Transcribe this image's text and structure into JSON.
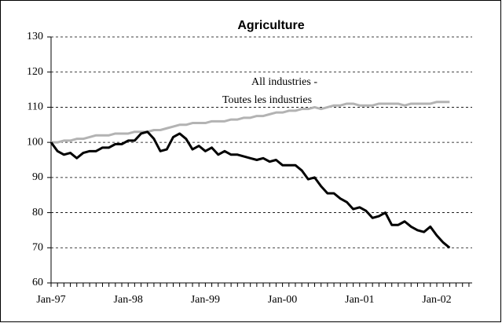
{
  "chart_data": {
    "type": "line",
    "title": "Agriculture",
    "annotations": [
      "All industries -",
      "Toutes les industries"
    ],
    "categories": [
      "Jan-97",
      null,
      null,
      null,
      null,
      null,
      null,
      null,
      null,
      null,
      null,
      null,
      "Jan-98",
      null,
      null,
      null,
      null,
      null,
      null,
      null,
      null,
      null,
      null,
      null,
      "Jan-99",
      null,
      null,
      null,
      null,
      null,
      null,
      null,
      null,
      null,
      null,
      null,
      "Jan-00",
      null,
      null,
      null,
      null,
      null,
      null,
      null,
      null,
      null,
      null,
      null,
      "Jan-01",
      null,
      null,
      null,
      null,
      null,
      null,
      null,
      null,
      null,
      null,
      null,
      "Jan-02",
      null,
      null,
      null,
      null,
      null
    ],
    "series": [
      {
        "color": "#000000",
        "values": [
          100,
          97.5,
          96.5,
          97,
          95.5,
          97,
          97.5,
          97.5,
          98.5,
          98.5,
          99.5,
          99.5,
          100.5,
          100.5,
          102.5,
          103,
          101,
          97.5,
          98,
          101.5,
          102.5,
          101,
          98,
          99,
          97.5,
          98.5,
          96.5,
          97.5,
          96.5,
          96.5,
          96,
          95.5,
          95,
          95.5,
          94.5,
          95,
          93.5,
          93.5,
          93.5,
          92,
          89.5,
          90,
          87.5,
          85.5,
          85.5,
          84,
          83,
          81,
          81.5,
          80.5,
          78.5,
          79,
          80,
          76.5,
          76.5,
          77.5,
          76,
          75,
          74.5,
          76,
          73.5,
          71.5,
          70,
          null,
          null,
          null
        ]
      },
      {
        "color": "#b3b3b3",
        "values": [
          100,
          100,
          100.5,
          100.5,
          101,
          101,
          101.5,
          102,
          102,
          102,
          102.5,
          102.5,
          102.5,
          103,
          103,
          103,
          103.5,
          103.5,
          104,
          104.5,
          105,
          105,
          105.5,
          105.5,
          105.5,
          106,
          106,
          106,
          106.5,
          106.5,
          107,
          107,
          107.5,
          107.5,
          108,
          108.5,
          108.5,
          109,
          109,
          109.5,
          109.5,
          110,
          109.5,
          110,
          110.5,
          110.5,
          111,
          111,
          110.5,
          110.5,
          110.5,
          111,
          111,
          111,
          111,
          110.5,
          111,
          111,
          111,
          111,
          111.5,
          111.5,
          111.5,
          null,
          null,
          null
        ]
      }
    ],
    "ylim": [
      60,
      130
    ],
    "yticks": [
      60,
      70,
      80,
      90,
      100,
      110,
      120,
      130
    ],
    "grid": true
  }
}
